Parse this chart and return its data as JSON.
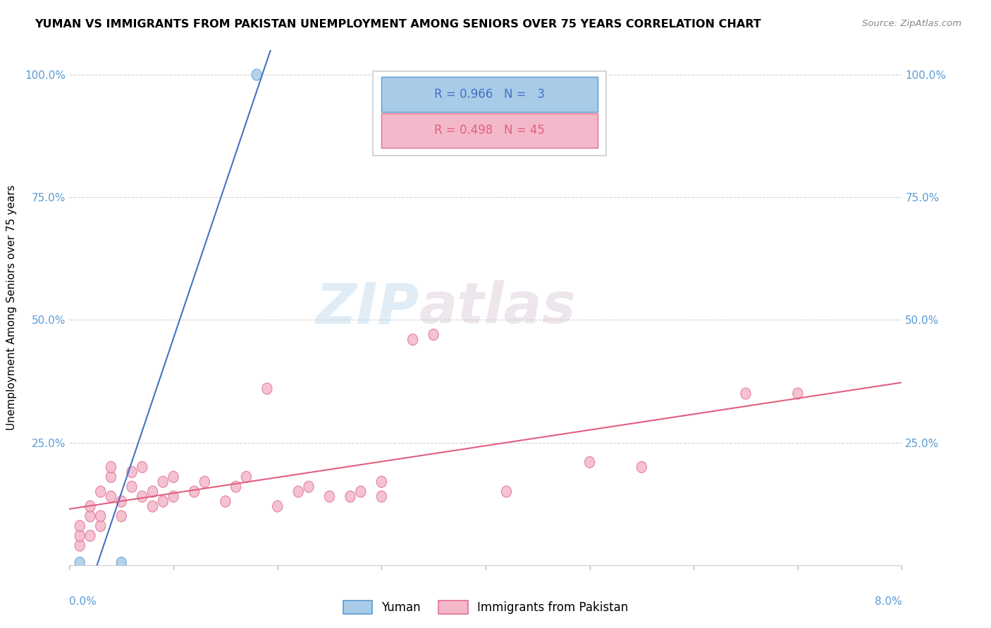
{
  "title": "YUMAN VS IMMIGRANTS FROM PAKISTAN UNEMPLOYMENT AMONG SENIORS OVER 75 YEARS CORRELATION CHART",
  "source": "Source: ZipAtlas.com",
  "ylabel": "Unemployment Among Seniors over 75 years",
  "yticks": [
    0.0,
    0.25,
    0.5,
    0.75,
    1.0
  ],
  "ytick_labels": [
    "",
    "25.0%",
    "50.0%",
    "75.0%",
    "100.0%"
  ],
  "xticks": [
    0.0,
    0.01,
    0.02,
    0.03,
    0.04,
    0.05,
    0.06,
    0.07,
    0.08
  ],
  "xmin": 0.0,
  "xmax": 0.08,
  "ymin": 0.0,
  "ymax": 1.05,
  "yuman_color": "#a8cce8",
  "yuman_edge": "#5b9bd5",
  "pakistan_color": "#f4b8cb",
  "pakistan_edge": "#e07090",
  "line_yuman_color": "#4472c4",
  "line_pakistan_color": "#e06080",
  "yuman_R": 0.966,
  "yuman_N": 3,
  "pakistan_R": 0.498,
  "pakistan_N": 45,
  "legend_label_yuman": "Yuman",
  "legend_label_pakistan": "Immigrants from Pakistan",
  "watermark_zip": "ZIP",
  "watermark_atlas": "atlas",
  "yuman_points": [
    [
      0.001,
      0.005
    ],
    [
      0.005,
      0.005
    ],
    [
      0.018,
      1.0
    ]
  ],
  "pakistan_points": [
    [
      0.001,
      0.04
    ],
    [
      0.001,
      0.06
    ],
    [
      0.001,
      0.08
    ],
    [
      0.002,
      0.06
    ],
    [
      0.002,
      0.1
    ],
    [
      0.002,
      0.12
    ],
    [
      0.003,
      0.08
    ],
    [
      0.003,
      0.1
    ],
    [
      0.003,
      0.15
    ],
    [
      0.004,
      0.14
    ],
    [
      0.004,
      0.18
    ],
    [
      0.004,
      0.2
    ],
    [
      0.005,
      0.1
    ],
    [
      0.005,
      0.13
    ],
    [
      0.006,
      0.16
    ],
    [
      0.006,
      0.19
    ],
    [
      0.007,
      0.14
    ],
    [
      0.007,
      0.2
    ],
    [
      0.008,
      0.12
    ],
    [
      0.008,
      0.15
    ],
    [
      0.009,
      0.13
    ],
    [
      0.009,
      0.17
    ],
    [
      0.01,
      0.14
    ],
    [
      0.01,
      0.18
    ],
    [
      0.012,
      0.15
    ],
    [
      0.013,
      0.17
    ],
    [
      0.015,
      0.13
    ],
    [
      0.016,
      0.16
    ],
    [
      0.017,
      0.18
    ],
    [
      0.019,
      0.36
    ],
    [
      0.02,
      0.12
    ],
    [
      0.022,
      0.15
    ],
    [
      0.023,
      0.16
    ],
    [
      0.025,
      0.14
    ],
    [
      0.027,
      0.14
    ],
    [
      0.028,
      0.15
    ],
    [
      0.03,
      0.14
    ],
    [
      0.03,
      0.17
    ],
    [
      0.033,
      0.46
    ],
    [
      0.035,
      0.47
    ],
    [
      0.042,
      0.15
    ],
    [
      0.05,
      0.21
    ],
    [
      0.055,
      0.2
    ],
    [
      0.065,
      0.35
    ],
    [
      0.07,
      0.35
    ]
  ]
}
